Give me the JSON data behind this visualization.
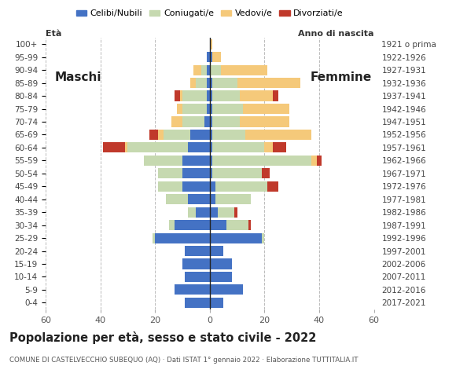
{
  "age_groups": [
    "0-4",
    "5-9",
    "10-14",
    "15-19",
    "20-24",
    "25-29",
    "30-34",
    "35-39",
    "40-44",
    "45-49",
    "50-54",
    "55-59",
    "60-64",
    "65-69",
    "70-74",
    "75-79",
    "80-84",
    "85-89",
    "90-94",
    "95-99",
    "100+"
  ],
  "birth_years": [
    "2017-2021",
    "2012-2016",
    "2007-2011",
    "2002-2006",
    "1997-2001",
    "1992-1996",
    "1987-1991",
    "1982-1986",
    "1977-1981",
    "1972-1976",
    "1967-1971",
    "1962-1966",
    "1957-1961",
    "1952-1956",
    "1947-1951",
    "1942-1946",
    "1937-1941",
    "1932-1936",
    "1927-1931",
    "1922-1926",
    "1921 o prima"
  ],
  "colors": {
    "celibi": "#4472c4",
    "coniugati": "#c6d9b0",
    "vedovi": "#f5c97a",
    "divorziati": "#c0392b"
  },
  "maschi": {
    "celibi": [
      9,
      13,
      9,
      10,
      9,
      20,
      13,
      5,
      8,
      10,
      10,
      10,
      8,
      7,
      2,
      1,
      1,
      1,
      1,
      1,
      0
    ],
    "coniugati": [
      0,
      0,
      0,
      0,
      0,
      1,
      2,
      3,
      8,
      9,
      9,
      14,
      22,
      10,
      8,
      9,
      9,
      4,
      2,
      0,
      0
    ],
    "vedovi": [
      0,
      0,
      0,
      0,
      0,
      0,
      0,
      0,
      0,
      0,
      0,
      0,
      1,
      2,
      4,
      2,
      1,
      2,
      3,
      0,
      0
    ],
    "divorziati": [
      0,
      0,
      0,
      0,
      0,
      0,
      0,
      0,
      0,
      0,
      0,
      0,
      8,
      3,
      0,
      0,
      2,
      0,
      0,
      0,
      0
    ]
  },
  "femmine": {
    "celibi": [
      5,
      12,
      8,
      8,
      5,
      19,
      6,
      3,
      2,
      2,
      1,
      1,
      1,
      1,
      1,
      1,
      1,
      1,
      0,
      1,
      0
    ],
    "coniugati": [
      0,
      0,
      0,
      0,
      0,
      1,
      8,
      6,
      13,
      19,
      18,
      36,
      19,
      12,
      10,
      11,
      10,
      9,
      4,
      0,
      0
    ],
    "vedovi": [
      0,
      0,
      0,
      0,
      0,
      0,
      0,
      0,
      0,
      0,
      0,
      2,
      3,
      24,
      18,
      17,
      12,
      23,
      17,
      3,
      1
    ],
    "divorziati": [
      0,
      0,
      0,
      0,
      0,
      0,
      1,
      1,
      0,
      4,
      3,
      2,
      5,
      0,
      0,
      0,
      2,
      0,
      0,
      0,
      0
    ]
  },
  "title": "Popolazione per età, sesso e stato civile - 2022",
  "subtitle": "COMUNE DI CASTELVECCHIO SUBEQUO (AQ) · Dati ISTAT 1° gennaio 2022 · Elaborazione TUTTITALIA.IT",
  "label_maschi": "Maschi",
  "label_femmine": "Femmine",
  "ylabel_left": "Età",
  "ylabel_right": "Anno di nascita",
  "xlim": 60,
  "xticks": [
    -60,
    -40,
    -20,
    0,
    20,
    40,
    60
  ],
  "xtick_labels": [
    "60",
    "40",
    "20",
    "0",
    "20",
    "40",
    "60"
  ],
  "legend_labels": [
    "Celibi/Nubili",
    "Coniugati/e",
    "Vedovi/e",
    "Divorziati/e"
  ],
  "bg_color": "#ffffff",
  "grid_color": "#bbbbbb"
}
